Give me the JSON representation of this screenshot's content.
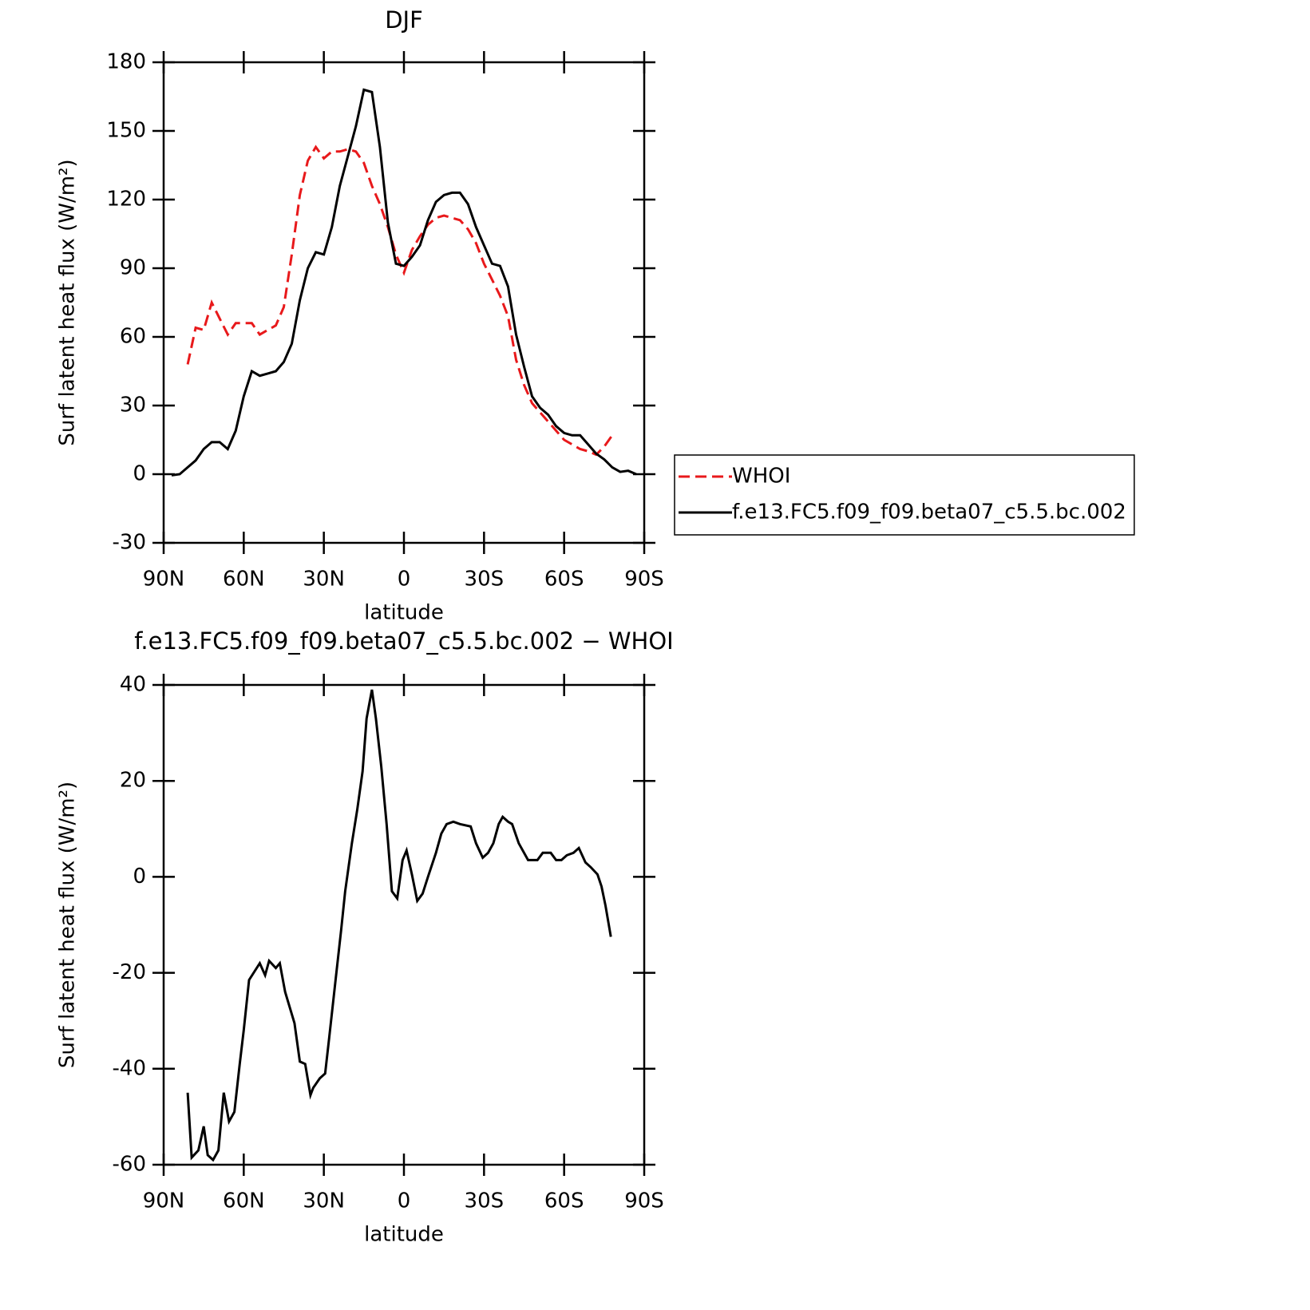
{
  "chart_data": [
    {
      "type": "line",
      "title": "DJF",
      "xlabel": "latitude",
      "ylabel": "Surf latent heat flux (W/m²)",
      "x": [
        87,
        84,
        81,
        78,
        75,
        72,
        69,
        66,
        63,
        60,
        57,
        54,
        51,
        48,
        45,
        42,
        39,
        36,
        33,
        30,
        27,
        24,
        21,
        18,
        15,
        12,
        9,
        6,
        3,
        0,
        -3,
        -6,
        -9,
        -12,
        -15,
        -18,
        -21,
        -24,
        -27,
        -30,
        -33,
        -36,
        -39,
        -42,
        -45,
        -48,
        -51,
        -54,
        -57,
        -60,
        -63,
        -66,
        -69,
        -72,
        -75,
        -78,
        -81,
        -84,
        -87
      ],
      "series": [
        {
          "name": "WHOI",
          "color": "#e8191b",
          "line_style": "dashed",
          "values": [
            null,
            null,
            48,
            64,
            63,
            75,
            68,
            61,
            66,
            66,
            66,
            61,
            63,
            65,
            73,
            96,
            122,
            137,
            143,
            138,
            141,
            141,
            142,
            141,
            136,
            126,
            118,
            108,
            96,
            88,
            98,
            104,
            109,
            112,
            113,
            112,
            111,
            107,
            101,
            92,
            85,
            78,
            69,
            50,
            39,
            31,
            27,
            23,
            19,
            15,
            13,
            11,
            10,
            8.5,
            12,
            17,
            null,
            null,
            null
          ]
        },
        {
          "name": "f.e13.FC5.f09_f09.beta07_c5.5.bc.002",
          "color": "#000000",
          "line_style": "solid",
          "values": [
            -0.5,
            0,
            3,
            6,
            11,
            14,
            14,
            11,
            19,
            34,
            45,
            43,
            44,
            45,
            49,
            57,
            76,
            90,
            97,
            96,
            108,
            126,
            139,
            152,
            168,
            167,
            143,
            110,
            92,
            91,
            95,
            100,
            111,
            119,
            122,
            123,
            123,
            118,
            108,
            100,
            92,
            91,
            82,
            61,
            47,
            34,
            29,
            26,
            21,
            18,
            17,
            17,
            13,
            9,
            6.5,
            3,
            1,
            1.5,
            0
          ]
        }
      ],
      "xlim": [
        90,
        -90
      ],
      "xticks": [
        {
          "value": 90,
          "label": "90N"
        },
        {
          "value": 60,
          "label": "60N"
        },
        {
          "value": 30,
          "label": "30N"
        },
        0,
        {
          "value": -30,
          "label": "30S"
        },
        {
          "value": -60,
          "label": "60S"
        },
        {
          "value": -90,
          "label": "90S"
        }
      ],
      "ylim": [
        -30,
        180
      ],
      "yticks": [
        -30,
        0,
        30,
        60,
        90,
        120,
        150,
        180
      ],
      "legend": "right"
    },
    {
      "type": "line",
      "title": "f.e13.FC5.f09_f09.beta07_c5.5.bc.002 − WHOI",
      "xlabel": "latitude",
      "ylabel": "Surf latent heat flux (W/m²)",
      "x": [
        81,
        79.5,
        77,
        75,
        73.5,
        71.5,
        69.5,
        67.5,
        65.5,
        63.5,
        61.5,
        60,
        58,
        54,
        52,
        50.5,
        48,
        46.5,
        44.5,
        41,
        39,
        37,
        35,
        34,
        31.5,
        29.5,
        28,
        25.5,
        23.5,
        22,
        19.5,
        17.5,
        15.5,
        14,
        12,
        10.5,
        8.5,
        6.5,
        4.5,
        2.5,
        0.5,
        -1,
        -3,
        -5,
        -7,
        -9,
        -12,
        -14,
        -16,
        -18.5,
        -21,
        -25,
        -27,
        -29.5,
        -31.5,
        -33.5,
        -35.5,
        -37,
        -39,
        -40.5,
        -43,
        -46.5,
        -50,
        -52,
        -55,
        -57,
        -59,
        -61,
        -63.5,
        -65.5,
        -68,
        -70,
        -72.5,
        -74,
        -75.5,
        -77.5
      ],
      "series": [
        {
          "color": "#000000",
          "line_style": "solid",
          "values": [
            -45,
            -58.5,
            -57,
            -52,
            -58,
            -59,
            -57,
            -45,
            -51,
            -49,
            -39,
            -32,
            -21.5,
            -18,
            -20.5,
            -17.5,
            -19,
            -18,
            -24,
            -30.5,
            -38.5,
            -39,
            -45.5,
            -44,
            -42,
            -41,
            -33.5,
            -21,
            -11,
            -3,
            7,
            14,
            22,
            33,
            39,
            33,
            23,
            11,
            -3,
            -4.5,
            3.5,
            5.5,
            0.5,
            -5,
            -3.5,
            0,
            5,
            9,
            11,
            11.5,
            11,
            10.5,
            7,
            4,
            5,
            7,
            11,
            12.5,
            11.5,
            11,
            7,
            3.5,
            3.5,
            5,
            5,
            3.5,
            3.5,
            4.5,
            5,
            6,
            3,
            2,
            0.5,
            -2,
            -6,
            -12.5
          ]
        }
      ],
      "xlim": [
        90,
        -90
      ],
      "xticks": [
        {
          "value": 90,
          "label": "90N"
        },
        {
          "value": 60,
          "label": "60N"
        },
        {
          "value": 30,
          "label": "30N"
        },
        0,
        {
          "value": -30,
          "label": "30S"
        },
        {
          "value": -60,
          "label": "60S"
        },
        {
          "value": -90,
          "label": "90S"
        }
      ],
      "ylim": [
        -60,
        40
      ],
      "yticks": [
        -60,
        -40,
        -20,
        0,
        20,
        40
      ]
    }
  ]
}
